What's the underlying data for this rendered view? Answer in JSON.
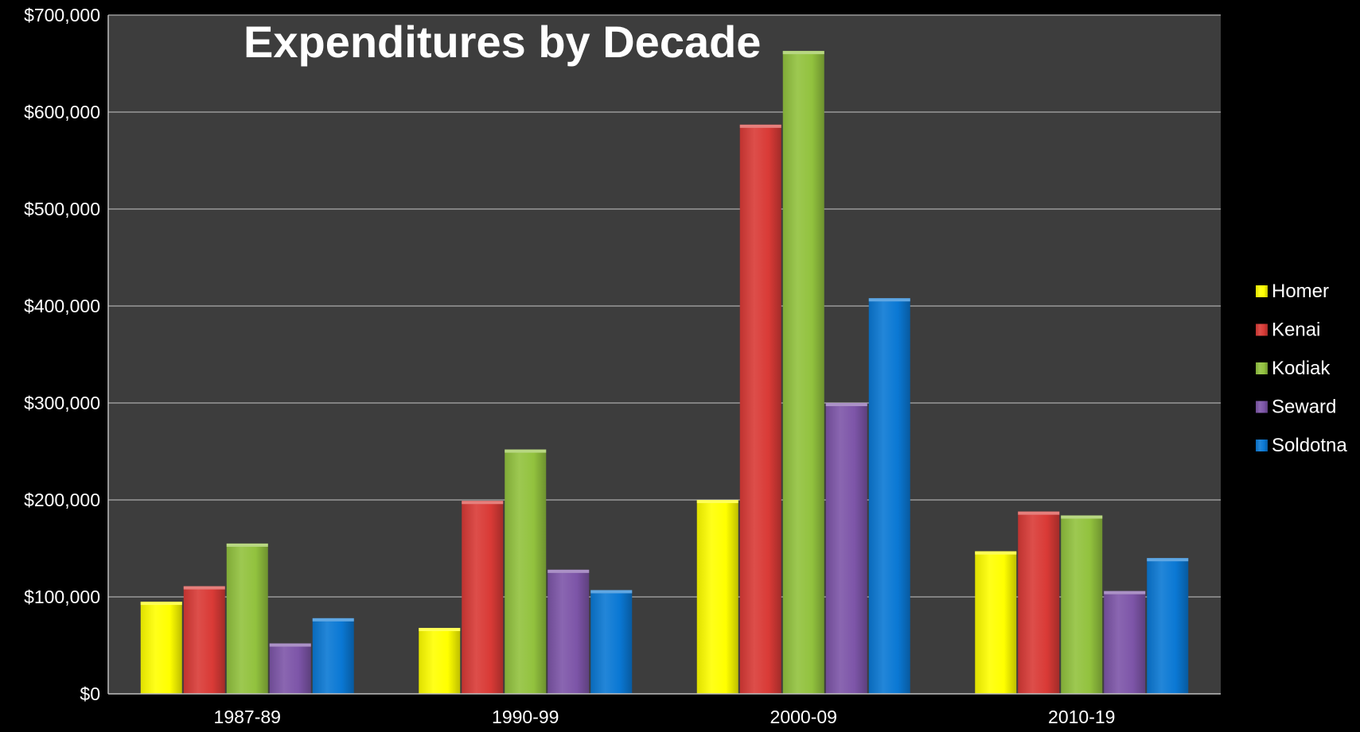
{
  "chart_data": {
    "type": "bar",
    "title": "Expenditures by Decade",
    "xlabel": "",
    "ylabel": "",
    "categories": [
      "1987-89",
      "1990-99",
      "2000-09",
      "2010-19"
    ],
    "series": [
      {
        "name": "Homer",
        "color": "#ffff00",
        "values": [
          95000,
          68000,
          200000,
          147000
        ]
      },
      {
        "name": "Kenai",
        "color": "#d93a36",
        "values": [
          111000,
          199000,
          587000,
          188000
        ]
      },
      {
        "name": "Kodiak",
        "color": "#92c23e",
        "values": [
          155000,
          252000,
          663000,
          184000
        ]
      },
      {
        "name": "Seward",
        "color": "#7d55a8",
        "values": [
          52000,
          128000,
          300000,
          106000
        ]
      },
      {
        "name": "Soldotna",
        "color": "#0a78d4",
        "values": [
          78000,
          107000,
          408000,
          140000
        ]
      }
    ],
    "ylim": [
      0,
      700000
    ],
    "yticks": [
      {
        "value": 0,
        "label": "$0"
      },
      {
        "value": 100000,
        "label": "$100,000"
      },
      {
        "value": 200000,
        "label": "$200,000"
      },
      {
        "value": 300000,
        "label": "$300,000"
      },
      {
        "value": 400000,
        "label": "$400,000"
      },
      {
        "value": 500000,
        "label": "$500,000"
      },
      {
        "value": 600000,
        "label": "$600,000"
      },
      {
        "value": 700000,
        "label": "$700,000"
      }
    ],
    "grid": true,
    "legend_position": "right",
    "colors": {
      "page_background": "#000000",
      "plot_background": "#3d3d3d",
      "gridline": "#9a9a9a",
      "text": "#ffffff"
    }
  }
}
